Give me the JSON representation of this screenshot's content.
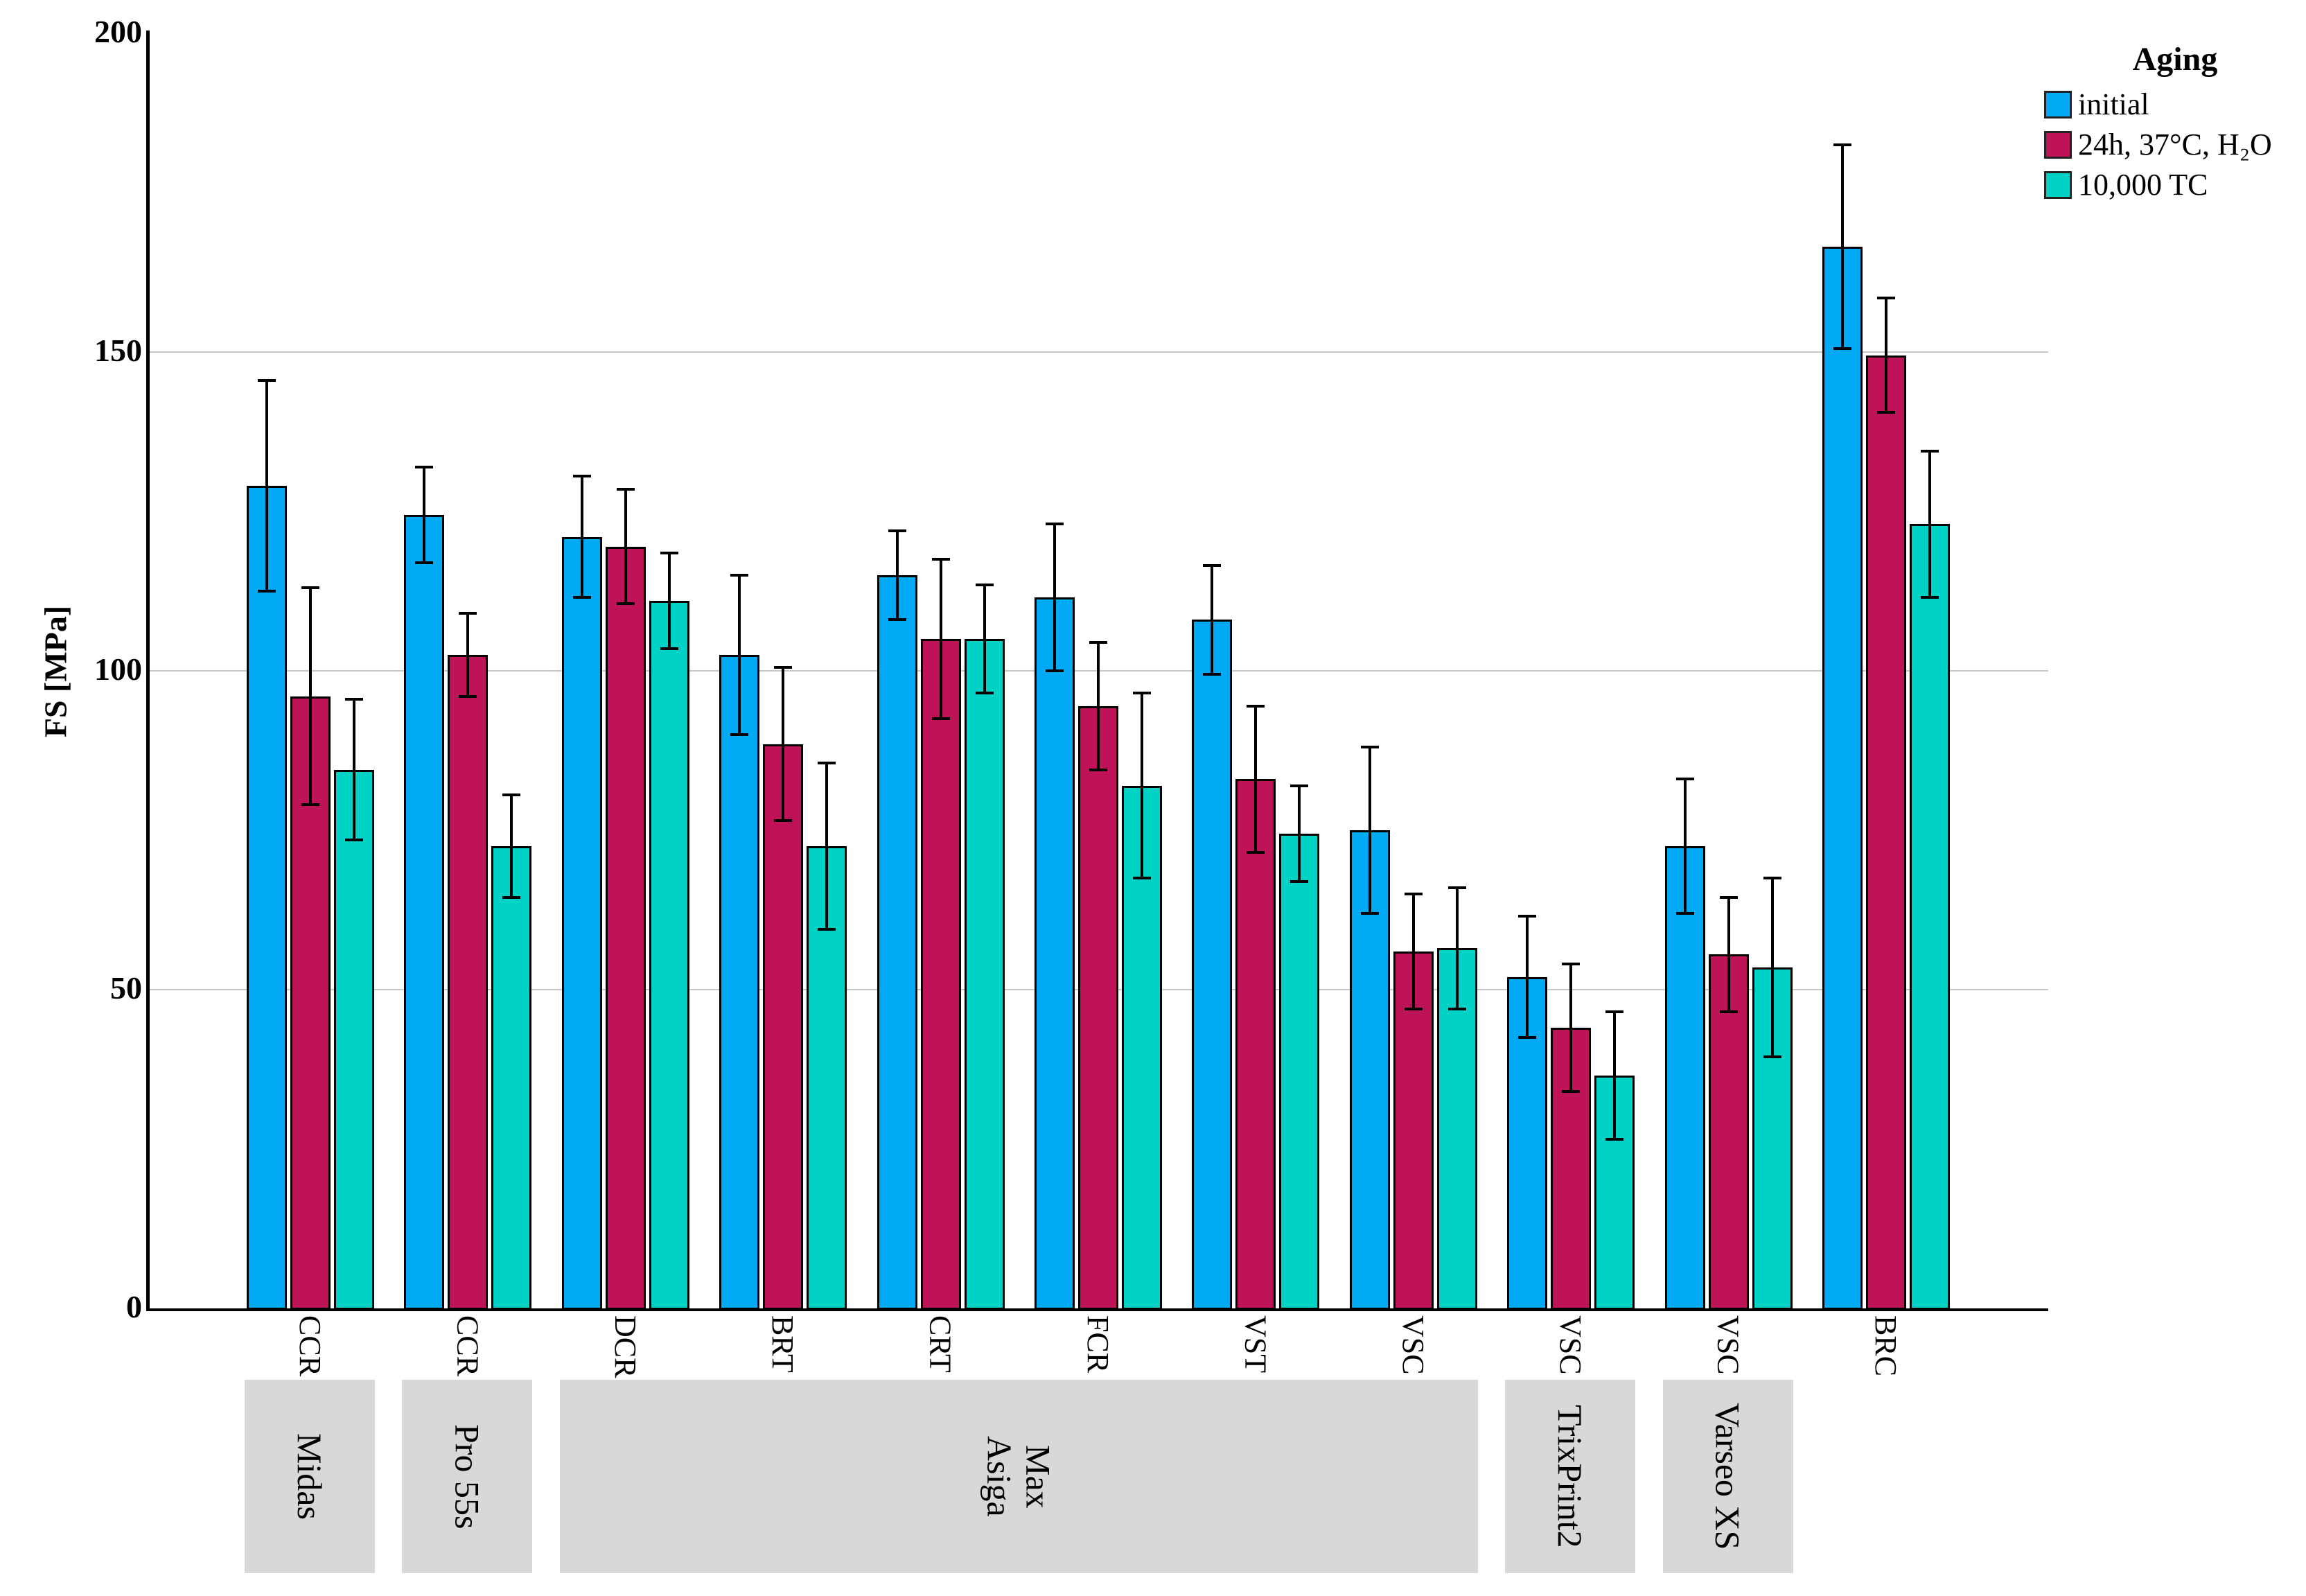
{
  "chart_data": {
    "type": "bar",
    "title": "",
    "ylabel": "FS [MPa]",
    "xlabel": "",
    "ylim": [
      0,
      200
    ],
    "yticks": [
      0,
      50,
      100,
      150,
      200
    ],
    "grid_yticks": [
      50,
      100,
      150
    ],
    "grid": "horizontal",
    "legend": {
      "title": "Aging",
      "position": "top-right",
      "entries": [
        {
          "label": "initial",
          "color": "#00aaf5"
        },
        {
          "label": "24h, 37°C, H₂O",
          "color": "#bE1356"
        },
        {
          "label": "10,000 TC",
          "color": "#00d3c6"
        }
      ]
    },
    "series_order": [
      "initial",
      "24h, 37°C, H₂O",
      "10,000 TC"
    ],
    "categories": [
      "CCR",
      "CCR",
      "DCR",
      "BRT",
      "CRT",
      "FCR",
      "VST",
      "VSC",
      "VSC",
      "VSC",
      "BRC"
    ],
    "groups": [
      {
        "material": "CCR",
        "printer": "Midas",
        "bars": [
          {
            "value": 129,
            "error": 16.5
          },
          {
            "value": 96,
            "error": 17
          },
          {
            "value": 84.5,
            "error": 11
          }
        ]
      },
      {
        "material": "CCR",
        "printer": "Pro 55s",
        "bars": [
          {
            "value": 124.5,
            "error": 7.5
          },
          {
            "value": 102.5,
            "error": 6.5
          },
          {
            "value": 72.5,
            "error": 8
          }
        ]
      },
      {
        "material": "DCR",
        "printer": "Asiga Max",
        "bars": [
          {
            "value": 121,
            "error": 9.5
          },
          {
            "value": 119.5,
            "error": 9
          },
          {
            "value": 111,
            "error": 7.5
          }
        ]
      },
      {
        "material": "BRT",
        "printer": "Asiga Max",
        "bars": [
          {
            "value": 102.5,
            "error": 12.5
          },
          {
            "value": 88.5,
            "error": 12
          },
          {
            "value": 72.5,
            "error": 13
          }
        ]
      },
      {
        "material": "CRT",
        "printer": "Asiga Max",
        "bars": [
          {
            "value": 115,
            "error": 7
          },
          {
            "value": 105,
            "error": 12.5
          },
          {
            "value": 105,
            "error": 8.5
          }
        ]
      },
      {
        "material": "FCR",
        "printer": "Asiga Max",
        "bars": [
          {
            "value": 111.5,
            "error": 11.5
          },
          {
            "value": 94.5,
            "error": 10
          },
          {
            "value": 82,
            "error": 14.5
          }
        ]
      },
      {
        "material": "VST",
        "printer": "Asiga Max",
        "bars": [
          {
            "value": 108,
            "error": 8.5
          },
          {
            "value": 83,
            "error": 11.5
          },
          {
            "value": 74.5,
            "error": 7.5
          }
        ]
      },
      {
        "material": "VSC",
        "printer": "Asiga Max",
        "bars": [
          {
            "value": 75,
            "error": 13
          },
          {
            "value": 56,
            "error": 9
          },
          {
            "value": 56.5,
            "error": 9.5
          }
        ]
      },
      {
        "material": "VSC",
        "printer": "TrixPrint2",
        "bars": [
          {
            "value": 52,
            "error": 9.5
          },
          {
            "value": 44,
            "error": 10
          },
          {
            "value": 36.5,
            "error": 10
          }
        ]
      },
      {
        "material": "VSC",
        "printer": "Varseo XS",
        "bars": [
          {
            "value": 72.5,
            "error": 10.5
          },
          {
            "value": 55.5,
            "error": 9
          },
          {
            "value": 53.5,
            "error": 14
          }
        ]
      },
      {
        "material": "BRC",
        "printer": "",
        "bars": [
          {
            "value": 166.5,
            "error": 16
          },
          {
            "value": 149.5,
            "error": 9
          },
          {
            "value": 123,
            "error": 11.5
          }
        ]
      }
    ],
    "printer_spans": [
      {
        "name": "Midas",
        "from": 0,
        "to": 0
      },
      {
        "name": "Pro 55s",
        "from": 1,
        "to": 1
      },
      {
        "name": "Asiga\nMax",
        "from": 2,
        "to": 7
      },
      {
        "name": "TrixPrint2",
        "from": 8,
        "to": 8
      },
      {
        "name": "Varseo XS",
        "from": 9,
        "to": 9
      }
    ],
    "colors": {
      "bar_outline": "#000000",
      "error_bar": "#000000",
      "grid": "#c8c8c8",
      "axis": "#000000",
      "printer_box": "#d8d8d8"
    }
  }
}
